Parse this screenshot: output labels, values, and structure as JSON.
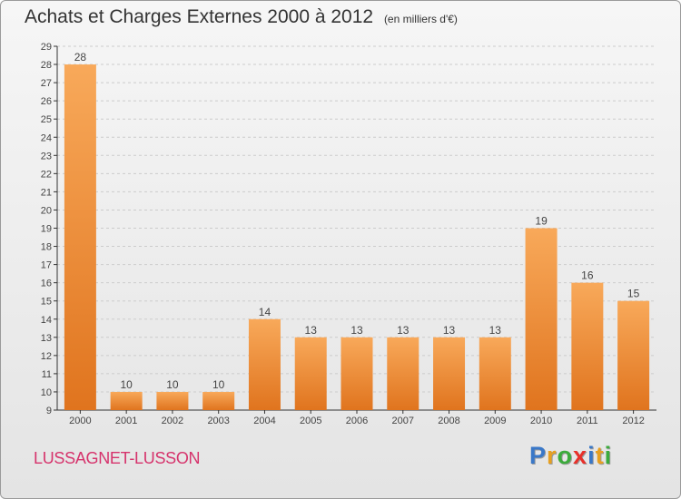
{
  "title": "Achats et Charges Externes 2000 à 2012",
  "unit": "(en milliers d'€)",
  "city": "LUSSAGNET-LUSSON",
  "brand": [
    "P",
    "r",
    "o",
    "x",
    "i",
    "t",
    "i"
  ],
  "brand_colors": [
    "#3a78c8",
    "#e8a020",
    "#3cab3c",
    "#e8302a",
    "#3a78c8",
    "#e8a020",
    "#3cab3c"
  ],
  "colors": {
    "bar_light": "#f8a95a",
    "bar_dark": "#e0741e",
    "axis": "#333333",
    "grid": "#cccccc"
  },
  "chart_data": {
    "type": "bar",
    "categories": [
      "2000",
      "2001",
      "2002",
      "2003",
      "2004",
      "2005",
      "2006",
      "2007",
      "2008",
      "2009",
      "2010",
      "2011",
      "2012"
    ],
    "values": [
      28,
      10,
      10,
      10,
      14,
      13,
      13,
      13,
      13,
      13,
      19,
      16,
      15
    ],
    "ylim": [
      9,
      29
    ],
    "yticks": [
      9,
      10,
      11,
      12,
      13,
      14,
      15,
      16,
      17,
      18,
      19,
      20,
      21,
      22,
      23,
      24,
      25,
      26,
      27,
      28,
      29
    ],
    "grid": true,
    "title": "Achats et Charges Externes 2000 à 2012",
    "xlabel": "",
    "ylabel": ""
  }
}
